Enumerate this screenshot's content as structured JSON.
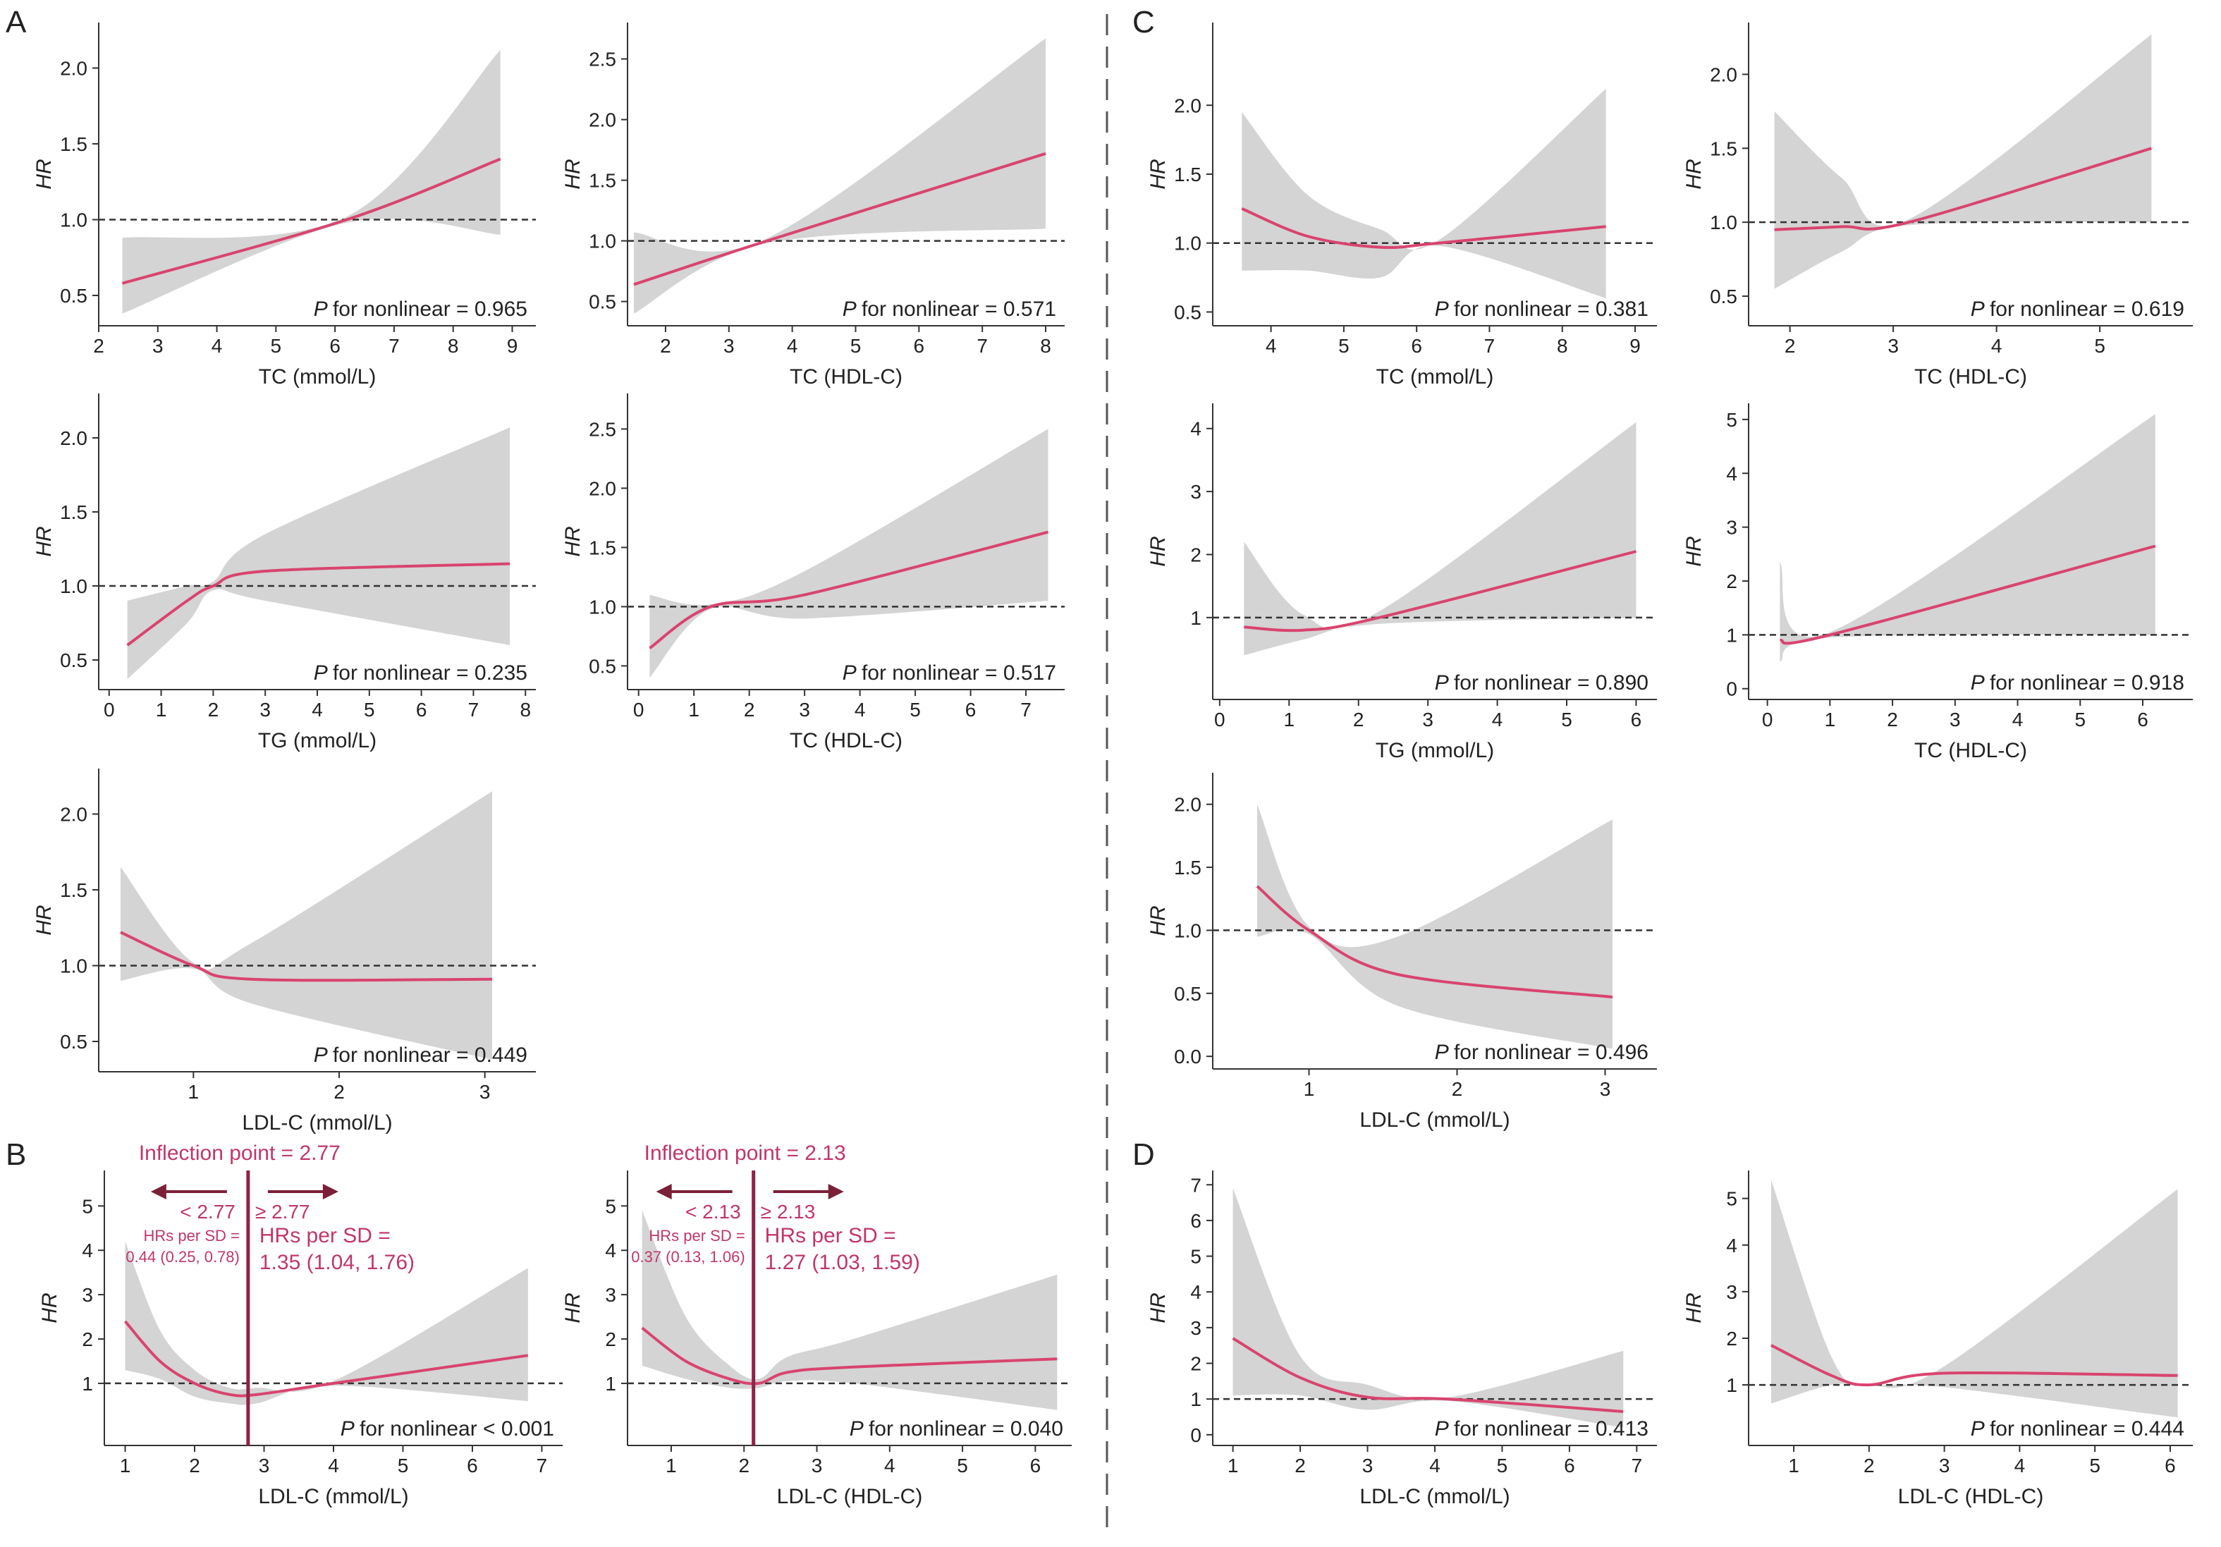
{
  "colors": {
    "curve": "#d9446f",
    "band": "#d4d4d4",
    "axis": "#333333",
    "annotation": "#c0366b",
    "vline": "#8e2247"
  },
  "panel_letters": [
    "A",
    "B",
    "C",
    "D"
  ],
  "annotations": [
    {
      "inflection": "Inflection point = 2.77",
      "left_label": "< 2.77",
      "right_label": "≥ 2.77",
      "left_hr_1": "HRs per SD =",
      "left_hr_2": "0.44 (0.25, 0.78)",
      "right_hr_1": "HRs per SD =",
      "right_hr_2": "1.35 (1.04, 1.76)"
    },
    {
      "inflection": "Inflection point = 2.13",
      "left_label": "< 2.13",
      "right_label": "≥ 2.13",
      "left_hr_1": "HRs per SD =",
      "left_hr_2": "0.37 (0.13, 1.06)",
      "right_hr_1": "HRs per SD =",
      "right_hr_2": "1.27 (1.03, 1.59)"
    }
  ],
  "chart_data": [
    {
      "panel": "A",
      "type": "area",
      "xlabel": "TC (mmol/L)",
      "ylabel": "HR",
      "p_label": "for nonlinear = 0.965",
      "xlim": [
        2,
        9.4
      ],
      "ylim": [
        0.3,
        2.3
      ],
      "xticks": [
        2,
        3,
        4,
        5,
        6,
        7,
        8,
        9
      ],
      "yticks": [
        0.5,
        1.0,
        1.5,
        2.0
      ],
      "ytick_decimals": 1,
      "ref_line": 1.0,
      "x": [
        2.4,
        6.2,
        8.8
      ],
      "y": [
        0.58,
        1.0,
        1.4
      ],
      "lower": [
        0.38,
        0.98,
        0.9
      ],
      "upper": [
        0.88,
        1.02,
        2.12
      ]
    },
    {
      "panel": "A",
      "type": "area",
      "xlabel": "TC (HDL-C)",
      "ylabel": "HR",
      "p_label": "for nonlinear = 0.571",
      "xlim": [
        1.4,
        8.3
      ],
      "ylim": [
        0.3,
        2.8
      ],
      "xticks": [
        2,
        3,
        4,
        5,
        6,
        7,
        8
      ],
      "yticks": [
        0.5,
        1.0,
        1.5,
        2.0,
        2.5
      ],
      "ytick_decimals": 1,
      "ref_line": 1.0,
      "x": [
        1.5,
        3.6,
        8.0
      ],
      "y": [
        0.64,
        1.0,
        1.72
      ],
      "lower": [
        0.4,
        0.98,
        1.1
      ],
      "upper": [
        1.07,
        1.02,
        2.67
      ]
    },
    {
      "panel": "A",
      "type": "area",
      "xlabel": "TG (mmol/L)",
      "ylabel": "HR",
      "p_label": "for nonlinear = 0.235",
      "xlim": [
        -0.2,
        8.2
      ],
      "ylim": [
        0.3,
        2.3
      ],
      "xticks": [
        0,
        1,
        2,
        3,
        4,
        5,
        6,
        7,
        8
      ],
      "yticks": [
        0.5,
        1.0,
        1.5,
        2.0
      ],
      "ytick_decimals": 1,
      "ref_line": 1.0,
      "x": [
        0.35,
        1.5,
        2.0,
        3.0,
        7.7
      ],
      "y": [
        0.6,
        0.9,
        1.0,
        1.1,
        1.15
      ],
      "lower": [
        0.37,
        0.75,
        0.97,
        0.9,
        0.6
      ],
      "upper": [
        0.9,
        1.0,
        1.03,
        1.35,
        2.07
      ]
    },
    {
      "panel": "A",
      "type": "area",
      "xlabel": "TC (HDL-C)",
      "ylabel": "HR",
      "p_label": "for nonlinear = 0.517",
      "xlim": [
        -0.2,
        7.7
      ],
      "ylim": [
        0.3,
        2.8
      ],
      "xticks": [
        0,
        1,
        2,
        3,
        4,
        5,
        6,
        7
      ],
      "yticks": [
        0.5,
        1.0,
        1.5,
        2.0,
        2.5
      ],
      "ytick_decimals": 1,
      "ref_line": 1.0,
      "x": [
        0.2,
        1.3,
        3.0,
        7.4
      ],
      "y": [
        0.65,
        1.0,
        1.1,
        1.63
      ],
      "lower": [
        0.4,
        0.98,
        0.9,
        1.05
      ],
      "upper": [
        1.1,
        1.02,
        1.3,
        2.5
      ]
    },
    {
      "panel": "A",
      "type": "area",
      "xlabel": "LDL-C (mmol/L)",
      "ylabel": "HR",
      "p_label": "for nonlinear = 0.449",
      "xlim": [
        0.35,
        3.35
      ],
      "ylim": [
        0.3,
        2.3
      ],
      "xticks": [
        1,
        2,
        3
      ],
      "yticks": [
        0.5,
        1.0,
        1.5,
        2.0
      ],
      "ytick_decimals": 1,
      "ref_line": 1.0,
      "x": [
        0.5,
        1.0,
        1.4,
        3.05
      ],
      "y": [
        1.22,
        1.0,
        0.91,
        0.91
      ],
      "lower": [
        0.9,
        0.98,
        0.75,
        0.38
      ],
      "upper": [
        1.65,
        1.02,
        1.15,
        2.15
      ]
    },
    {
      "panel": "B",
      "type": "area",
      "xlabel": "LDL-C (mmol/L)",
      "ylabel": "HR",
      "p_label": "for nonlinear < 0.001",
      "xlim": [
        0.7,
        7.3
      ],
      "ylim": [
        -0.4,
        5.8
      ],
      "xticks": [
        1,
        2,
        3,
        4,
        5,
        6,
        7
      ],
      "yticks": [
        1,
        2,
        3,
        4,
        5
      ],
      "ytick_decimals": 0,
      "ref_line": 1.0,
      "inflection_x": 2.77,
      "x": [
        1.0,
        1.5,
        2.0,
        2.5,
        2.9,
        4.0,
        6.8
      ],
      "y": [
        2.4,
        1.5,
        1.0,
        0.75,
        0.75,
        1.0,
        1.63
      ],
      "lower": [
        1.3,
        1.1,
        0.7,
        0.55,
        0.55,
        0.95,
        0.6
      ],
      "upper": [
        4.2,
        2.2,
        1.3,
        0.9,
        0.9,
        1.05,
        3.6
      ]
    },
    {
      "panel": "B",
      "type": "area",
      "xlabel": "LDL-C (HDL-C)",
      "ylabel": "HR",
      "p_label": "for nonlinear = 0.040",
      "xlim": [
        0.4,
        6.5
      ],
      "ylim": [
        -0.4,
        5.8
      ],
      "xticks": [
        1,
        2,
        3,
        4,
        5,
        6
      ],
      "yticks": [
        1,
        2,
        3,
        4,
        5
      ],
      "ytick_decimals": 0,
      "ref_line": 1.0,
      "inflection_x": 2.13,
      "x": [
        0.6,
        1.2,
        1.8,
        2.2,
        2.6,
        3.5,
        6.3
      ],
      "y": [
        2.25,
        1.5,
        1.1,
        1.0,
        1.25,
        1.37,
        1.55
      ],
      "lower": [
        1.4,
        1.1,
        0.9,
        0.9,
        1.05,
        1.0,
        0.4
      ],
      "upper": [
        4.9,
        2.5,
        1.4,
        1.1,
        1.6,
        2.0,
        3.45
      ]
    },
    {
      "panel": "C",
      "type": "area",
      "xlabel": "TC (mmol/L)",
      "ylabel": "HR",
      "p_label": "for nonlinear = 0.381",
      "xlim": [
        3.2,
        9.3
      ],
      "ylim": [
        0.4,
        2.6
      ],
      "xticks": [
        4,
        5,
        6,
        7,
        8,
        9
      ],
      "yticks": [
        0.5,
        1.0,
        1.5,
        2.0
      ],
      "ytick_decimals": 1,
      "ref_line": 1.0,
      "x": [
        3.6,
        4.5,
        5.5,
        6.3,
        8.6
      ],
      "y": [
        1.25,
        1.05,
        0.97,
        1.0,
        1.12
      ],
      "lower": [
        0.8,
        0.8,
        0.75,
        0.98,
        0.6
      ],
      "upper": [
        1.95,
        1.35,
        1.1,
        1.02,
        2.12
      ]
    },
    {
      "panel": "C",
      "type": "area",
      "xlabel": "TC (HDL-C)",
      "ylabel": "HR",
      "p_label": "for nonlinear = 0.619",
      "xlim": [
        1.6,
        5.9
      ],
      "ylim": [
        0.3,
        2.35
      ],
      "xticks": [
        2,
        3,
        4,
        5
      ],
      "yticks": [
        0.5,
        1.0,
        1.5,
        2.0
      ],
      "ytick_decimals": 1,
      "ref_line": 1.0,
      "x": [
        1.85,
        2.5,
        3.15,
        5.5
      ],
      "y": [
        0.95,
        0.97,
        1.0,
        1.5
      ],
      "lower": [
        0.55,
        0.8,
        0.98,
        1.0
      ],
      "upper": [
        1.75,
        1.3,
        1.02,
        2.27
      ]
    },
    {
      "panel": "C",
      "type": "area",
      "xlabel": "TG (mmol/L)",
      "ylabel": "HR",
      "p_label": "for nonlinear = 0.890",
      "xlim": [
        -0.1,
        6.3
      ],
      "ylim": [
        -0.3,
        4.4
      ],
      "xticks": [
        0,
        1,
        2,
        3,
        4,
        5,
        6
      ],
      "yticks": [
        1,
        2,
        3,
        4
      ],
      "ytick_decimals": 0,
      "ref_line": 1.0,
      "x": [
        0.35,
        1.2,
        2.3,
        6.0
      ],
      "y": [
        0.85,
        0.8,
        1.0,
        2.05
      ],
      "lower": [
        0.4,
        0.65,
        0.9,
        1.0
      ],
      "upper": [
        2.2,
        1.05,
        1.1,
        4.1
      ]
    },
    {
      "panel": "C",
      "type": "area",
      "xlabel": "TC (HDL-C)",
      "ylabel": "HR",
      "p_label": "for nonlinear = 0.918",
      "xlim": [
        -0.3,
        6.8
      ],
      "ylim": [
        -0.2,
        5.3
      ],
      "xticks": [
        0,
        1,
        2,
        3,
        4,
        5,
        6
      ],
      "yticks": [
        0,
        1,
        2,
        3,
        4,
        5
      ],
      "ytick_decimals": 0,
      "ref_line": 1.0,
      "x": [
        0.2,
        1.0,
        6.2
      ],
      "y": [
        0.9,
        1.0,
        2.65
      ],
      "lower": [
        0.5,
        0.95,
        1.0
      ],
      "upper": [
        2.35,
        1.05,
        5.1
      ]
    },
    {
      "panel": "C",
      "type": "area",
      "xlabel": "LDL-C (mmol/L)",
      "ylabel": "HR",
      "p_label": "for nonlinear = 0.496",
      "xlim": [
        0.35,
        3.35
      ],
      "ylim": [
        -0.1,
        2.25
      ],
      "xticks": [
        1,
        2,
        3
      ],
      "yticks": [
        0,
        0.5,
        1.0,
        1.5,
        2.0
      ],
      "ytick_decimals": 1,
      "ref_line": 1.0,
      "x": [
        0.65,
        1.0,
        1.6,
        3.05
      ],
      "y": [
        1.35,
        1.0,
        0.65,
        0.47
      ],
      "lower": [
        0.95,
        0.97,
        0.4,
        0.06
      ],
      "upper": [
        2.0,
        1.03,
        0.95,
        1.88
      ]
    },
    {
      "panel": "D",
      "type": "area",
      "xlabel": "LDL-C (mmol/L)",
      "ylabel": "HR",
      "p_label": "for nonlinear = 0.413",
      "xlim": [
        0.7,
        7.3
      ],
      "ylim": [
        -0.3,
        7.4
      ],
      "xticks": [
        1,
        2,
        3,
        4,
        5,
        6,
        7
      ],
      "yticks": [
        0,
        1,
        2,
        3,
        4,
        5,
        6,
        7
      ],
      "ytick_decimals": 0,
      "ref_line": 1.0,
      "x": [
        1.0,
        2.0,
        3.0,
        4.2,
        6.8
      ],
      "y": [
        2.7,
        1.6,
        1.05,
        1.0,
        0.65
      ],
      "lower": [
        1.1,
        1.1,
        0.7,
        0.95,
        0.2
      ],
      "upper": [
        6.9,
        2.2,
        1.4,
        1.05,
        2.35
      ]
    },
    {
      "panel": "D",
      "type": "area",
      "xlabel": "LDL-C (HDL-C)",
      "ylabel": "HR",
      "p_label": "for nonlinear = 0.444",
      "xlim": [
        0.4,
        6.3
      ],
      "ylim": [
        -0.3,
        5.6
      ],
      "xticks": [
        1,
        2,
        3,
        4,
        5,
        6
      ],
      "yticks": [
        1,
        2,
        3,
        4,
        5
      ],
      "ytick_decimals": 0,
      "ref_line": 1.0,
      "x": [
        0.7,
        1.5,
        2.0,
        3.0,
        6.1
      ],
      "y": [
        1.85,
        1.2,
        1.0,
        1.25,
        1.2
      ],
      "lower": [
        0.6,
        1.0,
        0.98,
        0.95,
        0.3
      ],
      "upper": [
        5.4,
        1.6,
        1.02,
        1.4,
        5.2
      ]
    }
  ]
}
